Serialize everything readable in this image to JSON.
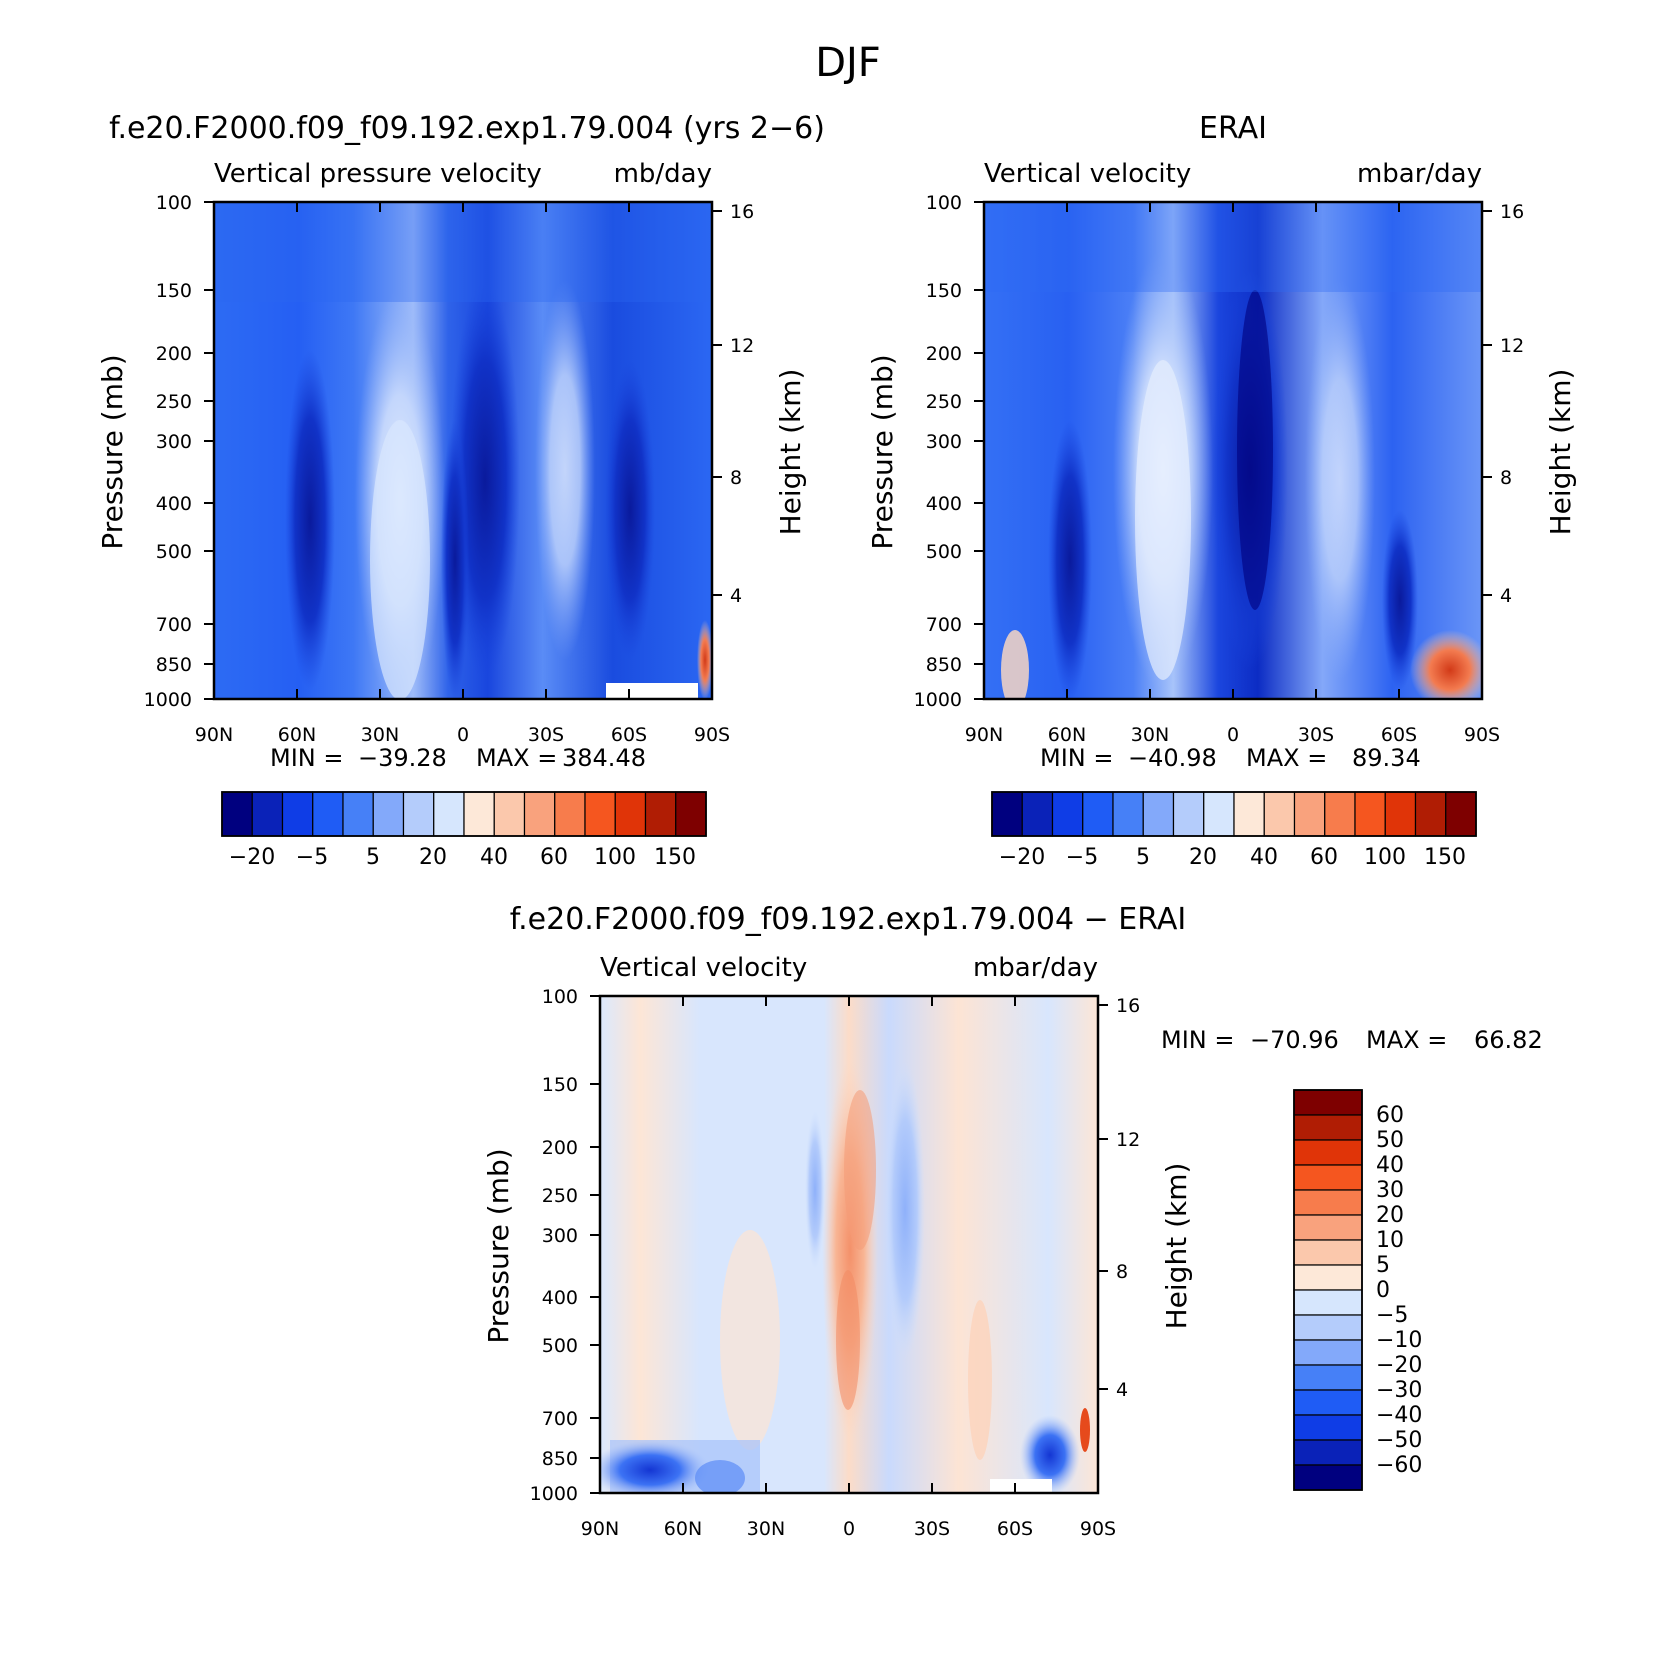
{
  "figure": {
    "title": "DJF"
  },
  "chart_data": [
    {
      "type": "heatmap",
      "title": "f.e20.F2000.f09_f09.192.exp1.79.004 (yrs 2−6)",
      "variable_label": "Vertical pressure velocity",
      "units_label": "mb/day",
      "ylabel": "Pressure (mb)",
      "right_label": "Height (km)",
      "x_ticks": [
        "90N",
        "60N",
        "30N",
        "0",
        "30S",
        "60S",
        "90S"
      ],
      "y_ticks": [
        "100",
        "150",
        "200",
        "250",
        "300",
        "400",
        "500",
        "700",
        "850",
        "1000"
      ],
      "height_ticks": [
        "16",
        "12",
        "8",
        "4"
      ],
      "ylim": [
        1000,
        100
      ],
      "yscale": "log",
      "stats": {
        "min_label": "MIN =",
        "min": "−39.28",
        "max_label": "MAX =",
        "max": "384.48"
      },
      "colorbar": {
        "orientation": "horizontal",
        "labels": [
          "−20",
          "−5",
          "5",
          "20",
          "40",
          "60",
          "100",
          "150"
        ],
        "colors": [
          "#00007f",
          "#0a22b8",
          "#0f3de6",
          "#1f5cf5",
          "#4680f7",
          "#83a9fa",
          "#b4ccfb",
          "#d6e6fd",
          "#fde8d8",
          "#fbc8ac",
          "#f9a27d",
          "#f77c4c",
          "#f5561f",
          "#e03408",
          "#b01d04",
          "#7e0000"
        ]
      }
    },
    {
      "type": "heatmap",
      "title": "ERAI",
      "variable_label": "Vertical velocity",
      "units_label": "mbar/day",
      "ylabel": "Pressure (mb)",
      "right_label": "Height (km)",
      "x_ticks": [
        "90N",
        "60N",
        "30N",
        "0",
        "30S",
        "60S",
        "90S"
      ],
      "y_ticks": [
        "100",
        "150",
        "200",
        "250",
        "300",
        "400",
        "500",
        "700",
        "850",
        "1000"
      ],
      "height_ticks": [
        "16",
        "12",
        "8",
        "4"
      ],
      "ylim": [
        1000,
        100
      ],
      "yscale": "log",
      "stats": {
        "min_label": "MIN =",
        "min": "−40.98",
        "max_label": "MAX =",
        "max": "89.34"
      },
      "colorbar": {
        "orientation": "horizontal",
        "labels": [
          "−20",
          "−5",
          "5",
          "20",
          "40",
          "60",
          "100",
          "150"
        ],
        "colors": [
          "#00007f",
          "#0a22b8",
          "#0f3de6",
          "#1f5cf5",
          "#4680f7",
          "#83a9fa",
          "#b4ccfb",
          "#d6e6fd",
          "#fde8d8",
          "#fbc8ac",
          "#f9a27d",
          "#f77c4c",
          "#f5561f",
          "#e03408",
          "#b01d04",
          "#7e0000"
        ]
      }
    },
    {
      "type": "heatmap",
      "title": "f.e20.F2000.f09_f09.192.exp1.79.004 − ERAI",
      "variable_label": "Vertical velocity",
      "units_label": "mbar/day",
      "ylabel": "Pressure (mb)",
      "right_label": "Height (km)",
      "x_ticks": [
        "90N",
        "60N",
        "30N",
        "0",
        "30S",
        "60S",
        "90S"
      ],
      "y_ticks": [
        "100",
        "150",
        "200",
        "250",
        "300",
        "400",
        "500",
        "700",
        "850",
        "1000"
      ],
      "height_ticks": [
        "16",
        "12",
        "8",
        "4"
      ],
      "ylim": [
        1000,
        100
      ],
      "yscale": "log",
      "stats": {
        "min_label": "MIN =",
        "min": "−70.96",
        "max_label": "MAX =",
        "max": "66.82"
      },
      "colorbar": {
        "orientation": "vertical",
        "labels": [
          "60",
          "50",
          "40",
          "30",
          "20",
          "10",
          "5",
          "0",
          "−5",
          "−10",
          "−20",
          "−30",
          "−40",
          "−50",
          "−60"
        ],
        "colors": [
          "#7e0000",
          "#b01d04",
          "#e03408",
          "#f5561f",
          "#f77c4c",
          "#f9a27d",
          "#fbc8ac",
          "#fde8d8",
          "#d6e6fd",
          "#b4ccfb",
          "#83a9fa",
          "#4680f7",
          "#1f5cf5",
          "#0f3de6",
          "#0a22b8",
          "#00007f"
        ]
      }
    }
  ]
}
